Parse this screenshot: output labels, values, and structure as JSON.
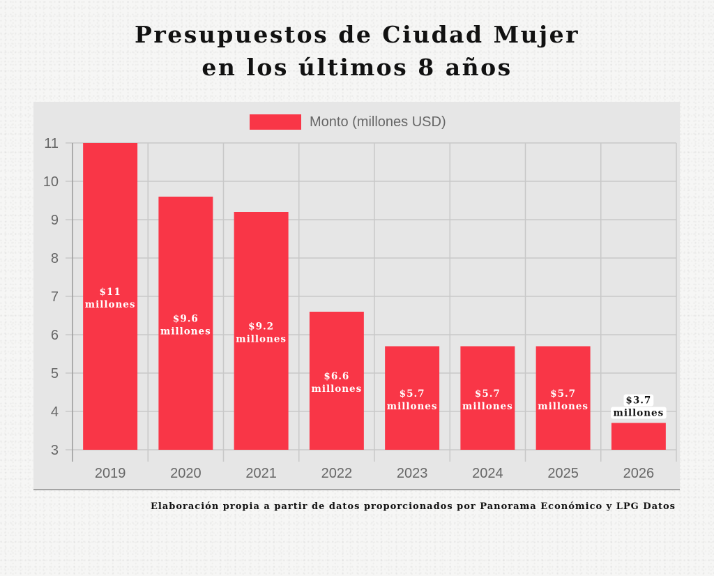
{
  "title": {
    "line1": "Presupuestos de Ciudad Mujer",
    "line2": "en los últimos 8 años"
  },
  "source_note": "Elaboración propia a partir de datos proporcionados por Panorama Económico  y LPG Datos",
  "colors": {
    "bar": "#f93647",
    "panel": "#e6e6e6",
    "grid": "#c8c8c8",
    "axis": "#999999",
    "tick_text": "#666666",
    "label_inside": "#ffffff",
    "label_outside": "#111111"
  },
  "chart_data": {
    "type": "bar",
    "title": "Presupuestos de Ciudad Mujer en los últimos 8 años",
    "xlabel": "",
    "ylabel": "",
    "categories": [
      "2019",
      "2020",
      "2021",
      "2022",
      "2023",
      "2024",
      "2025",
      "2026"
    ],
    "series": [
      {
        "name": "Monto (millones USD)",
        "values": [
          11,
          9.6,
          9.2,
          6.6,
          5.7,
          5.7,
          5.7,
          3.7
        ]
      }
    ],
    "data_labels": [
      [
        "$11",
        "millones"
      ],
      [
        "$9.6",
        "millones"
      ],
      [
        "$9.2",
        "millones"
      ],
      [
        "$6.6",
        "millones"
      ],
      [
        "$5.7",
        "millones"
      ],
      [
        "$5.7",
        "millones"
      ],
      [
        "$5.7",
        "millones"
      ],
      [
        "$3.7",
        "millones"
      ]
    ],
    "ylim": [
      3,
      11
    ],
    "yticks": [
      3,
      4,
      5,
      6,
      7,
      8,
      9,
      10,
      11
    ],
    "grid": true,
    "legend": "top-center"
  }
}
